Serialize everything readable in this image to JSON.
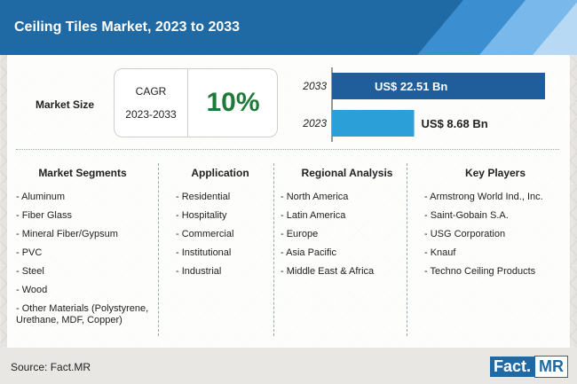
{
  "header": {
    "title": "Ceiling Tiles Market, 2023 to 2033"
  },
  "market_size": {
    "label": "Market Size",
    "cagr_label": "CAGR",
    "cagr_years": "2023-2033",
    "cagr_value": "10%"
  },
  "colors": {
    "bar_2033": "#1f5e9a",
    "bar_2023": "#2a9fd8",
    "header": "#1f6aa5",
    "cagr": "#1f7a3a"
  },
  "chart_data": {
    "type": "bar",
    "orientation": "horizontal",
    "categories": [
      "2033",
      "2023"
    ],
    "values": [
      22.51,
      8.68
    ],
    "labels": [
      "US$ 22.51 Bn",
      "US$ 8.68 Bn"
    ],
    "unit": "US$ Bn"
  },
  "segments": {
    "market_segments": {
      "heading": "Market Segments",
      "items": [
        "- Aluminum",
        "- Fiber Glass",
        "- Mineral Fiber/Gypsum",
        "- PVC",
        "- Steel",
        "- Wood",
        "- Other Materials (Polystyrene, Urethane, MDF, Copper)"
      ]
    },
    "application": {
      "heading": "Application",
      "items": [
        "- Residential",
        "- Hospitality",
        "- Commercial",
        "- Institutional",
        "- Industrial"
      ]
    },
    "regional": {
      "heading": "Regional Analysis",
      "items": [
        "- North America",
        "- Latin America",
        "- Europe",
        "- Asia Pacific",
        "- Middle East & Africa"
      ]
    },
    "key_players": {
      "heading": "Key Players",
      "items": [
        "- Armstrong World Ind., Inc.",
        "- Saint-Gobain S.A.",
        "- USG Corporation",
        "- Knauf",
        "- Techno Ceiling Products"
      ]
    }
  },
  "footer": {
    "source": "Source: Fact.MR",
    "logo_left": "Fact.",
    "logo_right": "MR"
  }
}
